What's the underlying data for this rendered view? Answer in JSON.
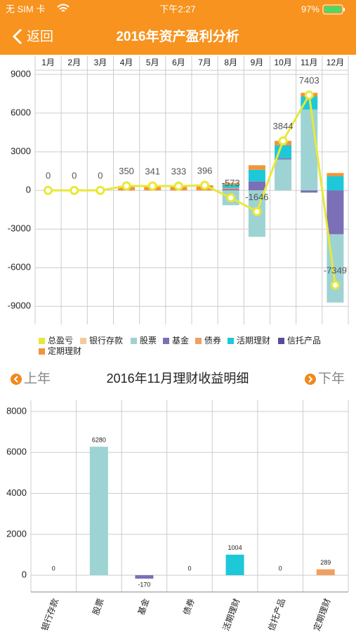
{
  "status": {
    "carrier": "无 SIM 卡",
    "time": "下午2:27",
    "battery": "97%"
  },
  "nav": {
    "back": "返回",
    "title": "2016年资产盈利分析"
  },
  "switcher": {
    "prev": "上年",
    "next": "下年",
    "title": "2016年11月理财收益明细"
  },
  "chart_data": [
    {
      "type": "combo",
      "categories": [
        "1月",
        "2月",
        "3月",
        "4月",
        "5月",
        "6月",
        "7月",
        "8月",
        "9月",
        "10月",
        "11月",
        "12月"
      ],
      "ylim": [
        -10400,
        9600
      ],
      "yticks": [
        9000,
        6000,
        3000,
        0,
        -3000,
        -6000,
        -9000
      ],
      "grid": true,
      "series": [
        {
          "name": "总盈亏",
          "type": "line",
          "color": "#e8e83a",
          "values": [
            0,
            0,
            0,
            350,
            341,
            333,
            396,
            -573,
            -1646,
            3844,
            7403,
            -7349
          ]
        },
        {
          "name": "银行存款",
          "type": "bar",
          "color": "#f6c99a",
          "values": [
            0,
            0,
            0,
            0,
            0,
            0,
            0,
            0,
            0,
            0,
            0,
            0
          ]
        },
        {
          "name": "股票",
          "type": "bar",
          "color": "#9dd3d3",
          "values": [
            0,
            0,
            0,
            0,
            0,
            0,
            0,
            -1150,
            -3600,
            2400,
            6280,
            -5300
          ]
        },
        {
          "name": "基金",
          "type": "bar",
          "color": "#7b6fb5",
          "values": [
            0,
            0,
            0,
            0,
            0,
            0,
            0,
            100,
            700,
            100,
            -170,
            -3400
          ]
        },
        {
          "name": "债券",
          "type": "bar",
          "color": "#f0a060",
          "values": [
            0,
            0,
            0,
            0,
            0,
            0,
            0,
            100,
            0,
            0,
            0,
            0
          ]
        },
        {
          "name": "活期理财",
          "type": "bar",
          "color": "#1ec8d8",
          "values": [
            0,
            0,
            0,
            0,
            0,
            0,
            0,
            250,
            900,
            1000,
            1004,
            1100
          ]
        },
        {
          "name": "信托产品",
          "type": "bar",
          "color": "#5b4a9a",
          "values": [
            0,
            0,
            0,
            0,
            0,
            0,
            0,
            0,
            0,
            0,
            0,
            0
          ]
        },
        {
          "name": "定期理财",
          "type": "bar",
          "color": "#f0953a",
          "values": [
            0,
            0,
            0,
            350,
            341,
            333,
            396,
            127,
            354,
            344,
            289,
            251
          ]
        }
      ]
    },
    {
      "type": "bar",
      "categories": [
        "银行存款",
        "股票",
        "基金",
        "债券",
        "活期理财",
        "信托产品",
        "定期理财"
      ],
      "values": [
        0,
        6280,
        -170,
        0,
        1004,
        0,
        289
      ],
      "colors": [
        "#f6c99a",
        "#9dd3d3",
        "#7b6fb5",
        "#f0a060",
        "#1ec8d8",
        "#5b4a9a",
        "#f0a060"
      ],
      "ylim": [
        -820,
        8550
      ],
      "yticks": [
        0,
        2000,
        4000,
        6000,
        8000
      ],
      "grid": true
    }
  ]
}
